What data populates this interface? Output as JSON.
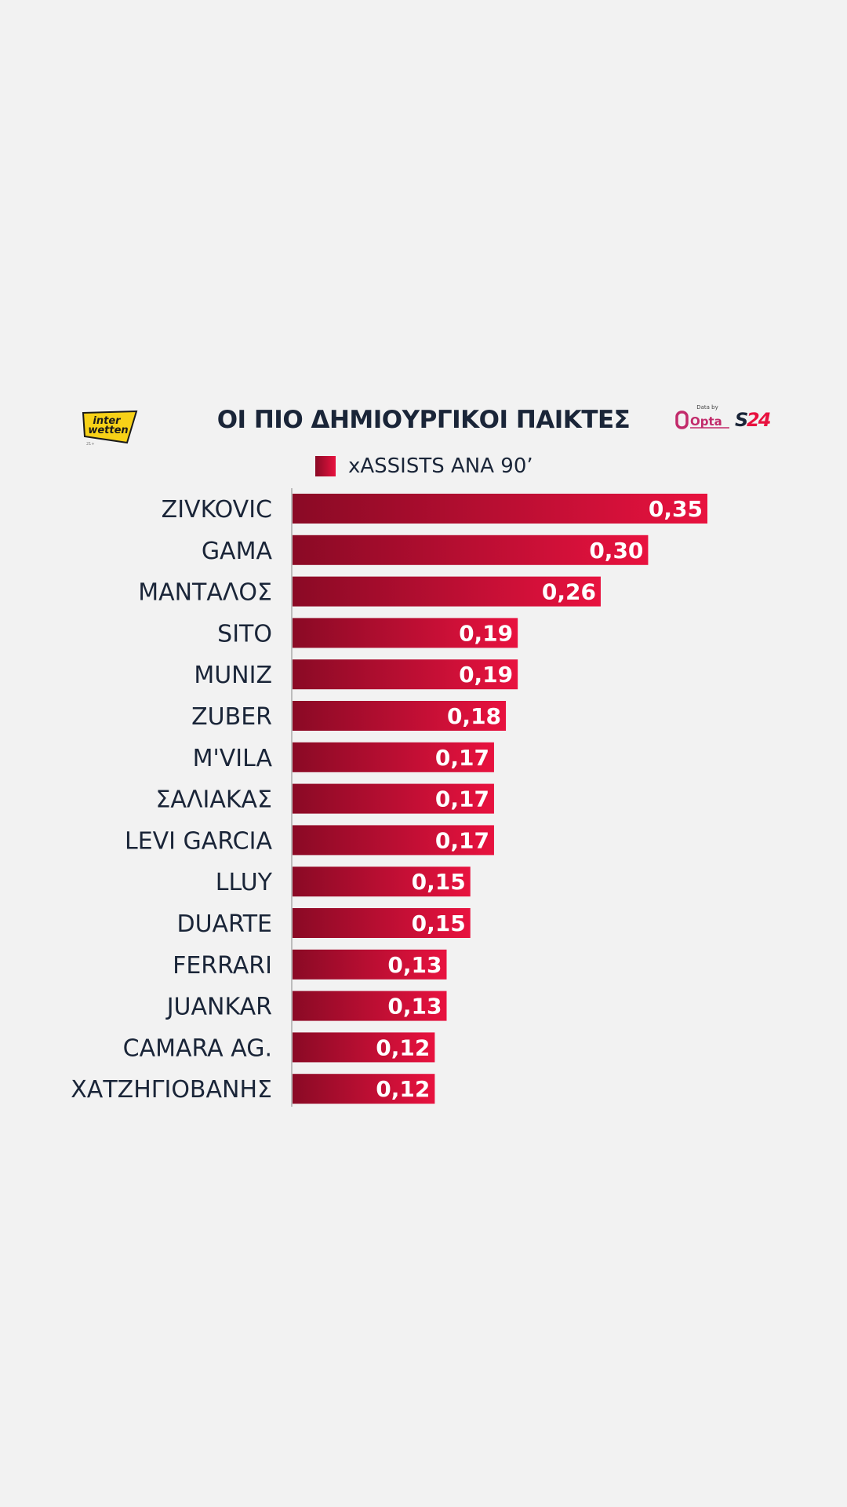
{
  "header": {
    "title": "ΟΙ ΠΙΟ ΔΗΜΙΟΥΡΓΙΚΟΙ ΠΑΙΚΤΕΣ",
    "sponsor_logo": "interwetten",
    "opta_caption": "Data by",
    "opta_logo": "Opta",
    "brand_logo": "S24"
  },
  "colors": {
    "background": "#f2f2f2",
    "bar_start": "#8a0a25",
    "bar_end": "#e8123f",
    "text": "#1a2538"
  },
  "chart_data": {
    "type": "bar",
    "orientation": "horizontal",
    "title": "ΟΙ ΠΙΟ ΔΗΜΙΟΥΡΓΙΚΟΙ ΠΑΙΚΤΕΣ",
    "categories": [
      "ZIVKOVIC",
      "GAMA",
      "ΜΑΝΤΑΛΟΣ",
      "SITO",
      "MUNIZ",
      "ZUBER",
      "M'VILA",
      "ΣΑΛΙΑΚΑΣ",
      "LEVI GARCIA",
      "LLUY",
      "DUARTE",
      "FERRARI",
      "JUANKAR",
      "CAMARA AG.",
      "ΧΑΤΖΗΓΙΟΒΑΝΗΣ"
    ],
    "series": [
      {
        "name": "xASSISTS ΑΝΑ 90’",
        "values": [
          0.35,
          0.3,
          0.26,
          0.19,
          0.19,
          0.18,
          0.17,
          0.17,
          0.17,
          0.15,
          0.15,
          0.13,
          0.13,
          0.12,
          0.12
        ],
        "value_labels": [
          "0,35",
          "0,30",
          "0,26",
          "0,19",
          "0,19",
          "0,18",
          "0,17",
          "0,17",
          "0,17",
          "0,15",
          "0,15",
          "0,13",
          "0,13",
          "0,12",
          "0,12"
        ]
      }
    ],
    "xlim": [
      0,
      0.35
    ],
    "grid": false,
    "legend": "top-center"
  }
}
